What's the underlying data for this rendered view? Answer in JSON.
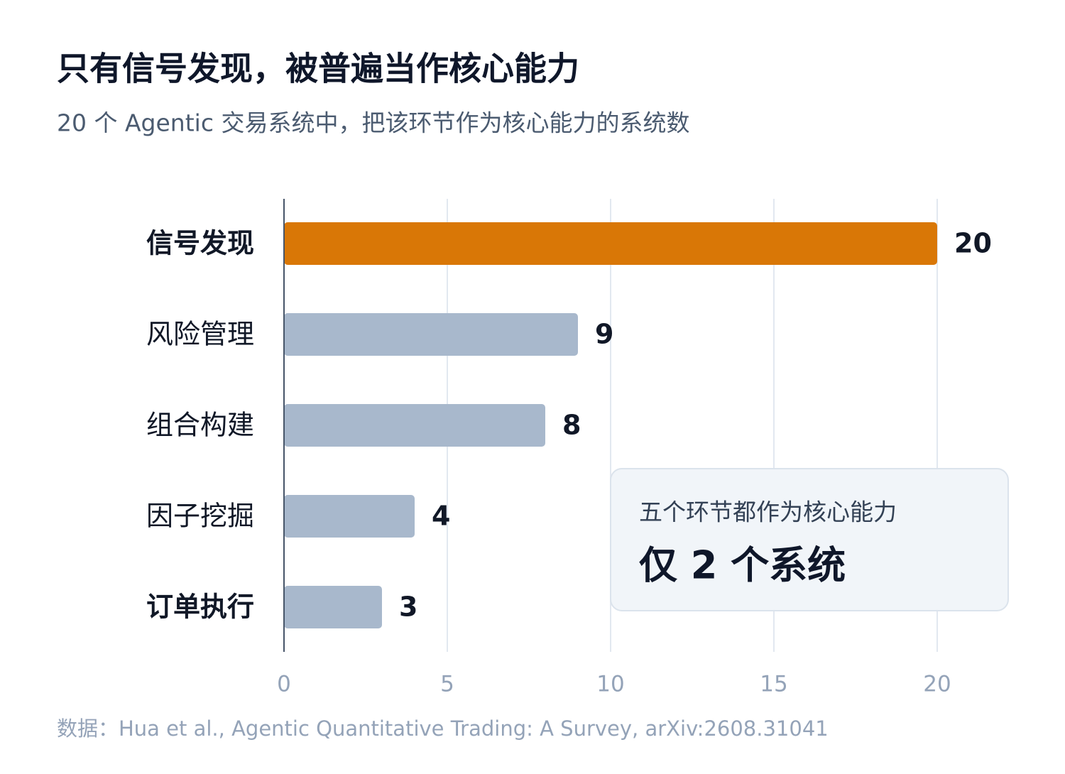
{
  "chart_data": {
    "type": "bar",
    "orientation": "horizontal",
    "title": "只有信号发现，被普遍当作核心能力",
    "subtitle": "20 个 Agentic 交易系统中，把该环节作为核心能力的系统数",
    "categories": [
      "信号发现",
      "风险管理",
      "组合构建",
      "因子挖掘",
      "订单执行"
    ],
    "values": [
      20,
      9,
      8,
      4,
      3
    ],
    "colors": [
      "#d97706",
      "#a8b8cc",
      "#a8b8cc",
      "#a8b8cc",
      "#a8b8cc"
    ],
    "xlim": [
      0,
      20
    ],
    "xticks": [
      0,
      5,
      10,
      15,
      20
    ],
    "grid": true,
    "annotation": {
      "label": "五个环节都作为核心能力",
      "text": "仅 2 个系统"
    },
    "source": "数据：Hua et al., Agentic Quantitative Trading: A Survey, arXiv:2608.31041"
  }
}
